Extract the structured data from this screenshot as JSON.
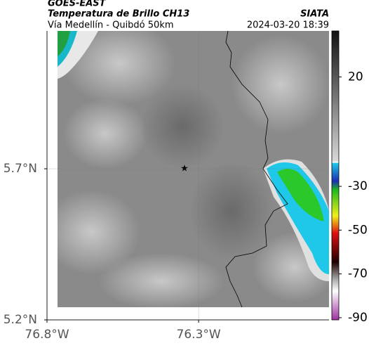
{
  "header": {
    "source": "GOES-EAST",
    "title": "Temperatura de Brillo CH13",
    "org": "SIATA",
    "subtitle": "Vía Medellín - Quibdó 50km",
    "datetime": "2024-03-20 18:39"
  },
  "chart_data": {
    "type": "map",
    "xlim": [
      -76.8,
      -75.87
    ],
    "xticks": [
      {
        "value": -76.8,
        "label": "76.8°W"
      },
      {
        "value": -76.3,
        "label": "76.3°W"
      }
    ],
    "ylim": [
      5.2,
      6.156
    ],
    "yticks": [
      {
        "value": 5.7,
        "label": "5.7°N"
      },
      {
        "value": 5.2,
        "label": "5.2°N"
      }
    ],
    "colorbar": {
      "lim": [
        -91,
        41
      ],
      "ticks": [
        20,
        -30,
        -50,
        -70,
        -90
      ]
    }
  }
}
